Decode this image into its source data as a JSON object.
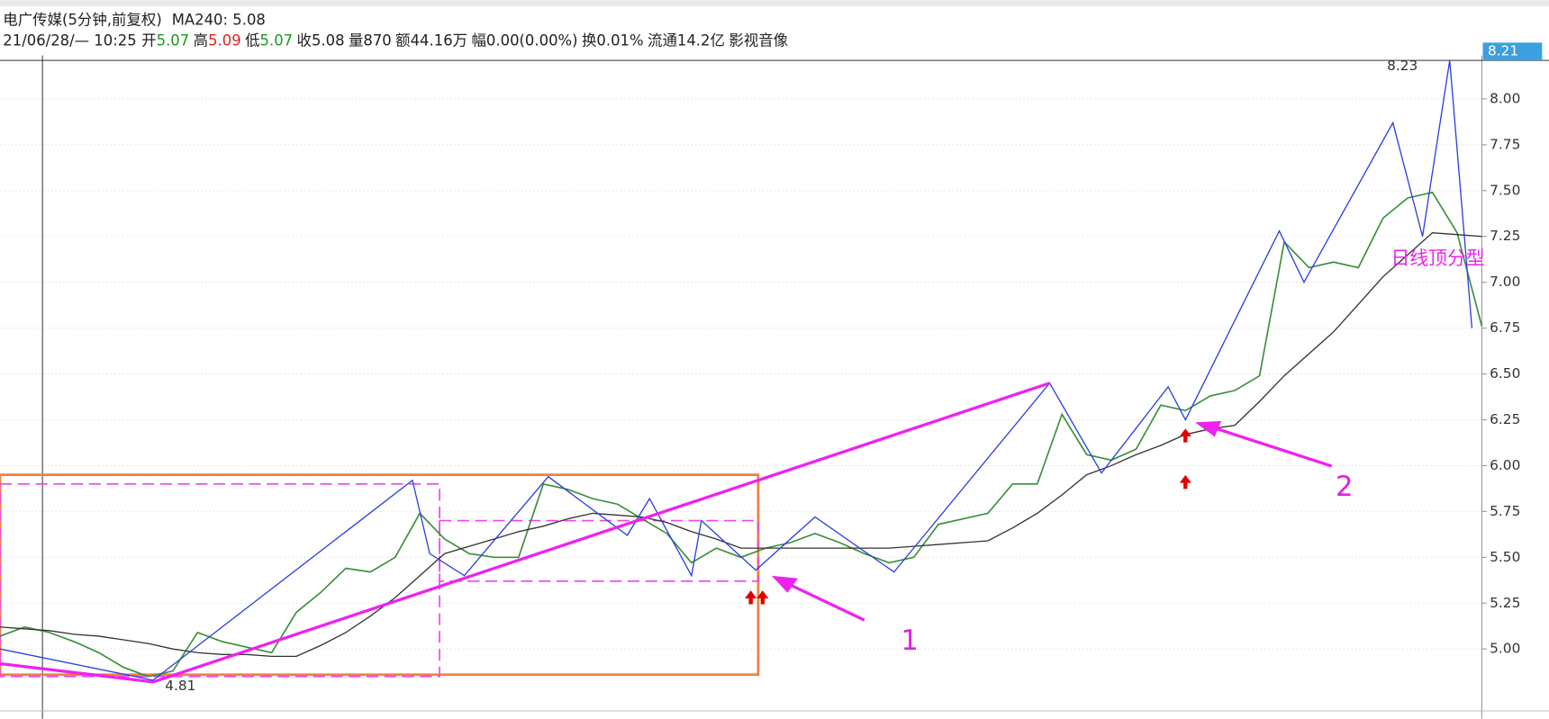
{
  "header": {
    "name": "电广传媒(5分钟,前复权)",
    "ma": "MA240: 5.08",
    "time": "21/06/28/— 10:25",
    "open_label": "开",
    "open": "5.07",
    "high_label": "高",
    "high": "5.09",
    "low_label": "低",
    "low": "5.07",
    "close": "收5.08",
    "volume": "量870",
    "amount": "额44.16万",
    "change": "幅0.00(0.00%)",
    "turnover": "换0.01%",
    "float": "流通14.2亿",
    "sector": "影视音像"
  },
  "chart_data": {
    "type": "line",
    "ylim": [
      4.7,
      8.21
    ],
    "xlim": [
      0,
      60
    ],
    "yticks": [
      {
        "value": 5.0,
        "label": "5.00"
      },
      {
        "value": 5.25,
        "label": "5.25"
      },
      {
        "value": 5.5,
        "label": "5.50"
      },
      {
        "value": 5.75,
        "label": "5.75"
      },
      {
        "value": 6.0,
        "label": "6.00"
      },
      {
        "value": 6.25,
        "label": "6.25"
      },
      {
        "value": 6.5,
        "label": "6.50"
      },
      {
        "value": 6.75,
        "label": "6.75"
      },
      {
        "value": 7.0,
        "label": "7.00"
      },
      {
        "value": 7.25,
        "label": "7.25"
      },
      {
        "value": 7.5,
        "label": "7.50"
      },
      {
        "value": 7.75,
        "label": "7.75"
      },
      {
        "value": 8.0,
        "label": "8.00"
      }
    ],
    "grid": true,
    "price_marker": {
      "value": 8.21,
      "label": "8.21"
    },
    "series": [
      {
        "color": "#3a8f3a",
        "values": [
          5.07,
          5.12,
          5.09,
          5.04,
          4.98,
          4.9,
          4.85,
          4.88,
          5.09,
          5.04,
          5.01,
          4.98,
          5.2,
          5.31,
          5.44,
          5.42,
          5.5,
          5.74,
          5.6,
          5.52,
          5.5,
          5.5,
          5.9,
          5.87,
          5.82,
          5.79,
          5.71,
          5.63,
          5.47,
          5.55,
          5.5,
          5.55,
          5.58,
          5.63,
          5.58,
          5.52,
          5.47,
          5.5,
          5.68,
          5.71,
          5.74,
          5.9,
          5.9,
          6.28,
          6.06,
          6.03,
          6.09,
          6.33,
          6.3,
          6.38,
          6.41,
          6.49,
          7.22,
          7.08,
          7.11,
          7.08,
          7.35,
          7.46,
          7.49,
          7.27,
          6.76
        ]
      },
      {
        "color": "#333333",
        "values": [
          5.12,
          5.11,
          5.1,
          5.08,
          5.07,
          5.05,
          5.03,
          5.0,
          4.98,
          4.97,
          4.97,
          4.96,
          4.96,
          5.02,
          5.09,
          5.18,
          5.28,
          5.4,
          5.52,
          5.56,
          5.6,
          5.64,
          5.67,
          5.71,
          5.74,
          5.73,
          5.72,
          5.69,
          5.64,
          5.6,
          5.55,
          5.55,
          5.55,
          5.55,
          5.55,
          5.55,
          5.55,
          5.56,
          5.57,
          5.58,
          5.59,
          5.66,
          5.74,
          5.84,
          5.95,
          6.0,
          6.06,
          6.11,
          6.17,
          6.2,
          6.22,
          6.35,
          6.49,
          6.61,
          6.73,
          6.88,
          7.03,
          7.15,
          7.27,
          7.26,
          7.25
        ]
      }
    ],
    "zigzag": {
      "color": "#2a3fe0",
      "x": [
        0,
        6.2,
        16.7,
        17.4,
        18.8,
        22.2,
        25.4,
        26.3,
        28,
        28.4,
        30.6,
        33,
        36.2,
        42.5,
        44.6,
        47.3,
        48,
        51.8,
        52.8,
        56.4,
        57.6,
        58.7,
        59.6
      ],
      "y": [
        5.0,
        4.83,
        5.92,
        5.52,
        5.4,
        5.94,
        5.62,
        5.82,
        5.4,
        5.7,
        5.43,
        5.72,
        5.42,
        6.45,
        5.96,
        6.43,
        6.25,
        7.28,
        7.0,
        7.87,
        7.25,
        8.21,
        6.75
      ]
    },
    "trend": {
      "color": "#ee22ee",
      "x": [
        0,
        6.2,
        42.5
      ],
      "y": [
        4.92,
        4.82,
        6.45
      ]
    },
    "boxes": [
      {
        "color": "#f08040",
        "dashed": false,
        "x": [
          0,
          30.7
        ],
        "y": [
          4.86,
          5.95
        ]
      },
      {
        "color": "#ee44ee",
        "dashed": true,
        "x": [
          0,
          17.8
        ],
        "y": [
          4.85,
          5.9
        ]
      },
      {
        "color": "#ee44ee",
        "dashed": true,
        "x": [
          17.8,
          30.7
        ],
        "y": [
          5.37,
          5.7
        ]
      }
    ],
    "annotations": {
      "low": "4.81",
      "high": "8.23",
      "mark1": "1",
      "mark2": "2",
      "pattern": "日线顶分型"
    }
  }
}
